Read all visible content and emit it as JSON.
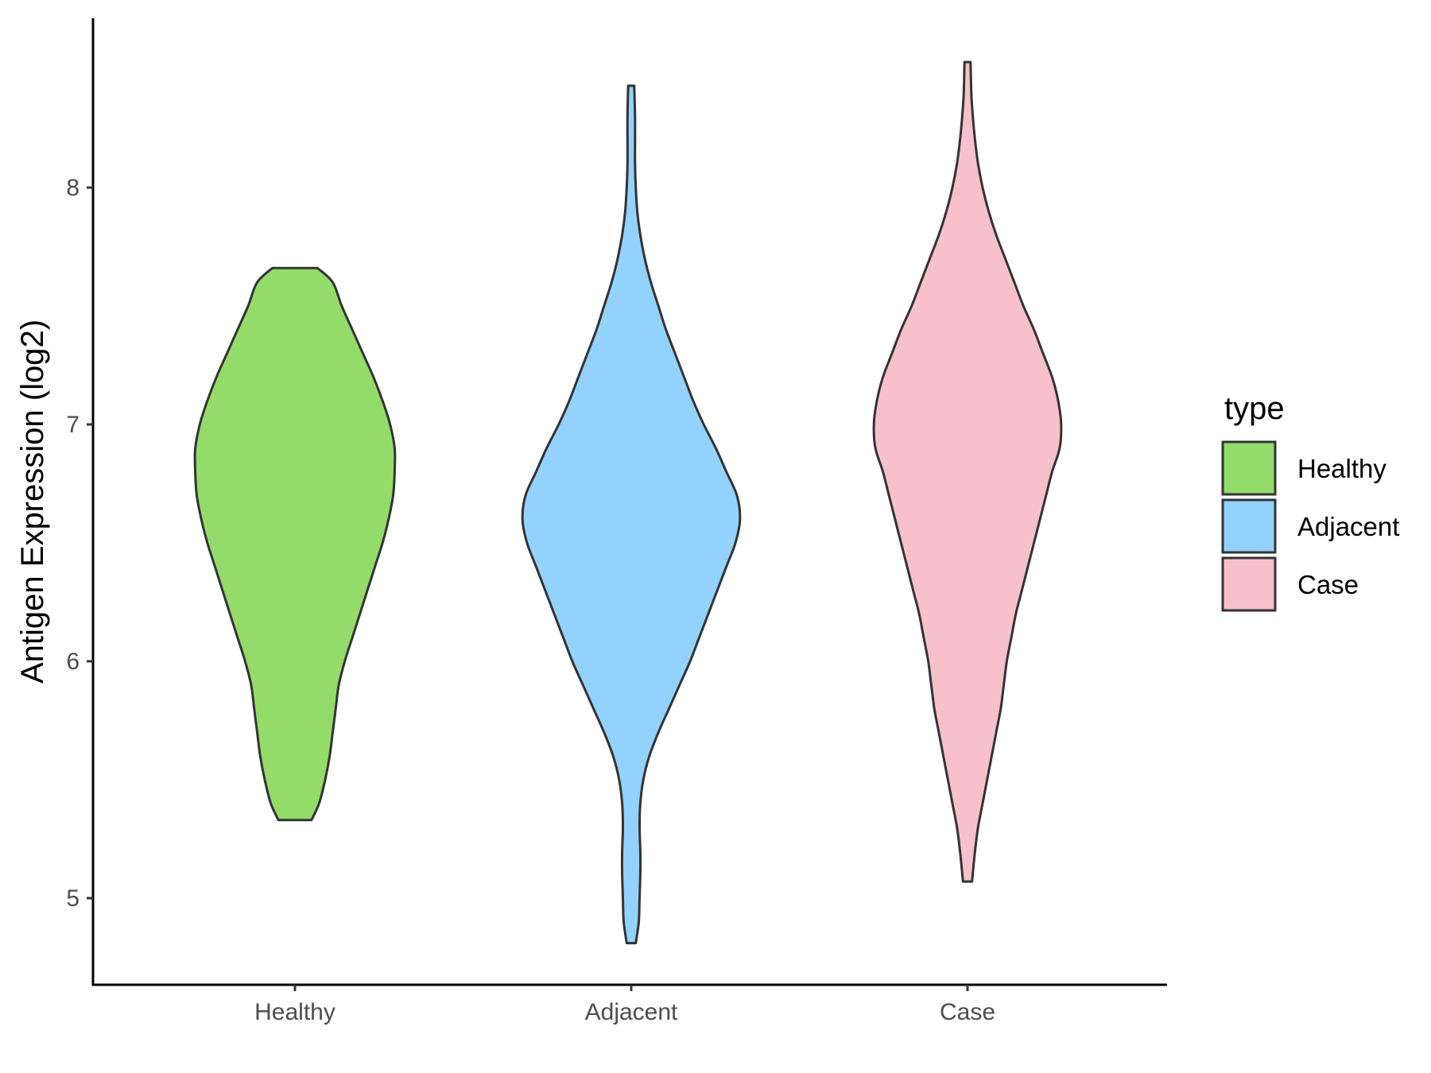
{
  "chart_data": {
    "type": "violin",
    "title": "",
    "xlabel": "",
    "ylabel": "Antigen Expression (log2)",
    "ylim": [
      4.63,
      8.73
    ],
    "yticks": [
      5,
      6,
      7,
      8
    ],
    "ytick_labels": [
      "5",
      "6",
      "7",
      "8"
    ],
    "categories": [
      "Healthy",
      "Adjacent",
      "Case"
    ],
    "grid": false,
    "legend": {
      "title": "type",
      "placement": "right",
      "entries": [
        "Healthy",
        "Adjacent",
        "Case"
      ]
    },
    "series": [
      {
        "name": "Healthy",
        "color": "#93dc6a",
        "min": 5.33,
        "max": 7.66,
        "density_profile": [
          [
            5.33,
            0.11
          ],
          [
            5.4,
            0.16
          ],
          [
            5.5,
            0.2
          ],
          [
            5.6,
            0.23
          ],
          [
            5.7,
            0.25
          ],
          [
            5.8,
            0.27
          ],
          [
            5.9,
            0.29
          ],
          [
            6.0,
            0.33
          ],
          [
            6.1,
            0.38
          ],
          [
            6.2,
            0.43
          ],
          [
            6.3,
            0.48
          ],
          [
            6.4,
            0.53
          ],
          [
            6.5,
            0.58
          ],
          [
            6.6,
            0.62
          ],
          [
            6.7,
            0.65
          ],
          [
            6.8,
            0.66
          ],
          [
            6.9,
            0.66
          ],
          [
            7.0,
            0.63
          ],
          [
            7.1,
            0.58
          ],
          [
            7.2,
            0.52
          ],
          [
            7.3,
            0.45
          ],
          [
            7.4,
            0.38
          ],
          [
            7.5,
            0.31
          ],
          [
            7.6,
            0.25
          ],
          [
            7.66,
            0.15
          ]
        ]
      },
      {
        "name": "Adjacent",
        "color": "#93d2fd",
        "min": 4.81,
        "max": 8.43,
        "density_profile": [
          [
            4.81,
            0.03
          ],
          [
            4.9,
            0.05
          ],
          [
            5.0,
            0.055
          ],
          [
            5.1,
            0.06
          ],
          [
            5.2,
            0.06
          ],
          [
            5.3,
            0.055
          ],
          [
            5.4,
            0.06
          ],
          [
            5.5,
            0.08
          ],
          [
            5.6,
            0.12
          ],
          [
            5.7,
            0.18
          ],
          [
            5.8,
            0.25
          ],
          [
            5.9,
            0.32
          ],
          [
            6.0,
            0.39
          ],
          [
            6.1,
            0.45
          ],
          [
            6.2,
            0.51
          ],
          [
            6.3,
            0.57
          ],
          [
            6.4,
            0.63
          ],
          [
            6.5,
            0.69
          ],
          [
            6.6,
            0.72
          ],
          [
            6.7,
            0.7
          ],
          [
            6.8,
            0.63
          ],
          [
            6.9,
            0.56
          ],
          [
            7.0,
            0.48
          ],
          [
            7.1,
            0.41
          ],
          [
            7.2,
            0.35
          ],
          [
            7.3,
            0.29
          ],
          [
            7.4,
            0.23
          ],
          [
            7.5,
            0.18
          ],
          [
            7.6,
            0.13
          ],
          [
            7.7,
            0.09
          ],
          [
            7.8,
            0.06
          ],
          [
            7.9,
            0.04
          ],
          [
            8.0,
            0.03
          ],
          [
            8.1,
            0.025
          ],
          [
            8.2,
            0.025
          ],
          [
            8.3,
            0.025
          ],
          [
            8.43,
            0.02
          ]
        ]
      },
      {
        "name": "Case",
        "color": "#f7c0cb",
        "min": 5.07,
        "max": 8.53,
        "density_profile": [
          [
            5.07,
            0.03
          ],
          [
            5.2,
            0.05
          ],
          [
            5.3,
            0.07
          ],
          [
            5.4,
            0.1
          ],
          [
            5.5,
            0.13
          ],
          [
            5.6,
            0.16
          ],
          [
            5.7,
            0.19
          ],
          [
            5.8,
            0.22
          ],
          [
            5.9,
            0.24
          ],
          [
            6.0,
            0.26
          ],
          [
            6.1,
            0.29
          ],
          [
            6.2,
            0.32
          ],
          [
            6.3,
            0.36
          ],
          [
            6.4,
            0.4
          ],
          [
            6.5,
            0.44
          ],
          [
            6.6,
            0.48
          ],
          [
            6.7,
            0.52
          ],
          [
            6.8,
            0.56
          ],
          [
            6.9,
            0.61
          ],
          [
            7.0,
            0.62
          ],
          [
            7.1,
            0.6
          ],
          [
            7.2,
            0.56
          ],
          [
            7.3,
            0.5
          ],
          [
            7.4,
            0.44
          ],
          [
            7.5,
            0.37
          ],
          [
            7.6,
            0.31
          ],
          [
            7.7,
            0.25
          ],
          [
            7.8,
            0.19
          ],
          [
            7.9,
            0.14
          ],
          [
            8.0,
            0.1
          ],
          [
            8.1,
            0.07
          ],
          [
            8.2,
            0.05
          ],
          [
            8.3,
            0.035
          ],
          [
            8.4,
            0.025
          ],
          [
            8.53,
            0.02
          ]
        ]
      }
    ]
  }
}
